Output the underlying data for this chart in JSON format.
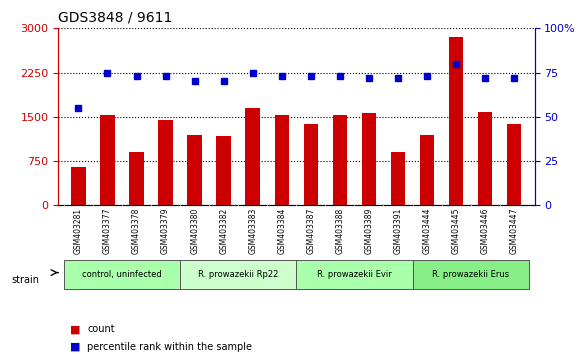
{
  "title": "GDS3848 / 9611",
  "samples": [
    "GSM403281",
    "GSM403377",
    "GSM403378",
    "GSM403379",
    "GSM403380",
    "GSM403382",
    "GSM403383",
    "GSM403384",
    "GSM403387",
    "GSM403388",
    "GSM403389",
    "GSM403391",
    "GSM403444",
    "GSM403445",
    "GSM403446",
    "GSM403447"
  ],
  "counts": [
    650,
    1530,
    900,
    1450,
    1200,
    1170,
    1650,
    1530,
    1380,
    1530,
    1560,
    900,
    1200,
    2850,
    1580,
    1380
  ],
  "percentiles": [
    55,
    75,
    73,
    73,
    70,
    70,
    75,
    73,
    73,
    73,
    72,
    72,
    73,
    80,
    72,
    72
  ],
  "bar_color": "#cc0000",
  "dot_color": "#0000cc",
  "left_ylim": [
    0,
    3000
  ],
  "right_ylim": [
    0,
    100
  ],
  "left_yticks": [
    0,
    750,
    1500,
    2250,
    3000
  ],
  "right_yticks": [
    0,
    25,
    50,
    75,
    100
  ],
  "right_yticklabels": [
    "0",
    "25",
    "50",
    "75",
    "100%"
  ],
  "left_yticklabels": [
    "0",
    "750",
    "1500",
    "2250",
    "3000"
  ],
  "groups": [
    {
      "label": "control, uninfected",
      "start": 0,
      "end": 3,
      "color": "#aaffaa"
    },
    {
      "label": "R. prowazekii Rp22",
      "start": 4,
      "end": 7,
      "color": "#ccffcc"
    },
    {
      "label": "R. prowazekii Evir",
      "start": 8,
      "end": 11,
      "color": "#aaffaa"
    },
    {
      "label": "R. prowazekii Erus",
      "start": 12,
      "end": 15,
      "color": "#88ee88"
    }
  ],
  "legend_count_color": "#cc0000",
  "legend_dot_color": "#0000cc",
  "strain_label": "strain",
  "xlabel_count": "count",
  "xlabel_percentile": "percentile rank within the sample",
  "dotted_line_color": "#000000",
  "tick_color_left": "#cc0000",
  "tick_color_right": "#0000cc",
  "bg_color": "#ffffff",
  "plot_bg": "#ffffff",
  "bar_width": 0.5
}
